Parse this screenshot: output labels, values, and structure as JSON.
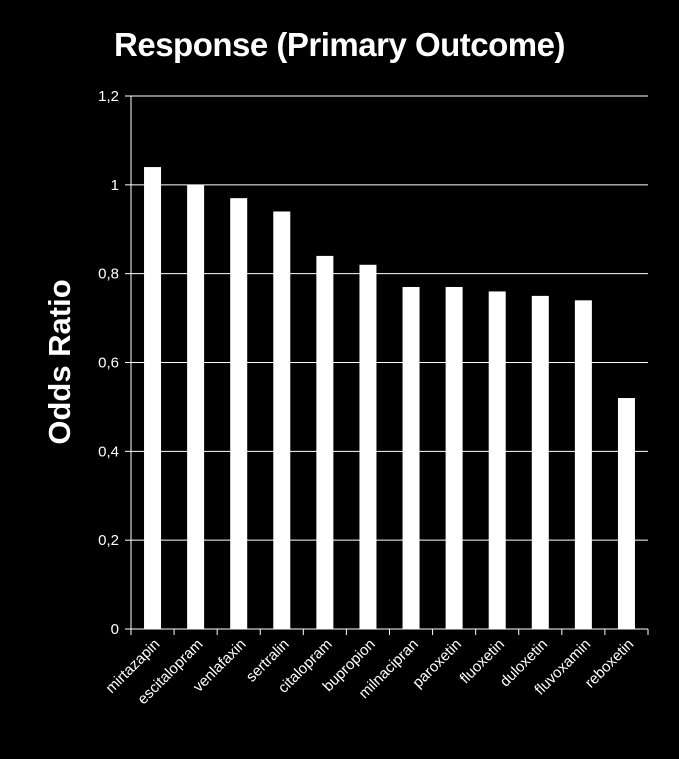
{
  "chart_data": {
    "type": "bar",
    "title": "Response (Primary Outcome)",
    "xlabel": "",
    "ylabel": "Odds Ratio",
    "ylim": [
      0,
      1.2
    ],
    "yticks": [
      0,
      0.2,
      0.4,
      0.6,
      0.8,
      1,
      1.2
    ],
    "ytick_labels": [
      "0",
      "0,2",
      "0,4",
      "0,6",
      "0,8",
      "1",
      "1,2"
    ],
    "grid": true,
    "legend": "none",
    "categories": [
      "mirtazapin",
      "escitalopram",
      "venlafaxin",
      "sertralin",
      "citalopram",
      "bupropion",
      "milnacipran",
      "paroxetin",
      "fluoxetin",
      "duloxetin",
      "fluvoxamin",
      "reboxetin"
    ],
    "values": [
      1.04,
      1.0,
      0.97,
      0.94,
      0.84,
      0.82,
      0.77,
      0.77,
      0.76,
      0.75,
      0.74,
      0.52
    ],
    "colors": {
      "background": "#000000",
      "bar": "#ffffff",
      "grid": "#ffffff",
      "text": "#ffffff"
    }
  }
}
